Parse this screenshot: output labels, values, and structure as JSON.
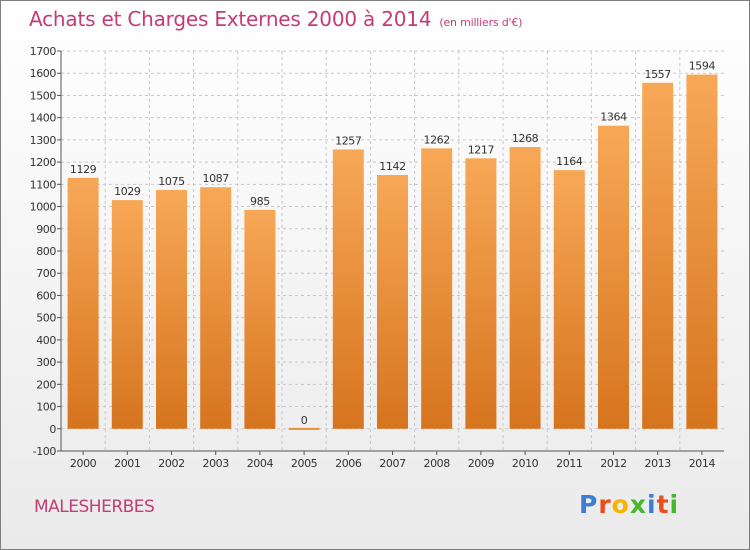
{
  "header": {
    "title": "Achats et Charges Externes 2000 à 2014",
    "unit": "(en milliers d'€)"
  },
  "footer": {
    "city": "MALESHERBES",
    "logo": {
      "letters": [
        "P",
        "r",
        "o",
        "x",
        "i",
        "t",
        "i"
      ],
      "colors": [
        "#3a7fd5",
        "#e94e1b",
        "#f5b400",
        "#46b62d",
        "#3a7fd5",
        "#e94e1b",
        "#46b62d"
      ]
    }
  },
  "colors": {
    "bar_light": "#f7a857",
    "bar_dark": "#d6741f",
    "grid": "#c8c8c8",
    "axis": "#555555",
    "title": "#c43c73"
  },
  "chart_data": {
    "type": "bar",
    "categories": [
      "2000",
      "2001",
      "2002",
      "2003",
      "2004",
      "2005",
      "2006",
      "2007",
      "2008",
      "2009",
      "2010",
      "2011",
      "2012",
      "2013",
      "2014"
    ],
    "values": [
      1129,
      1029,
      1075,
      1087,
      985,
      0,
      1257,
      1142,
      1262,
      1217,
      1268,
      1164,
      1364,
      1557,
      1594
    ],
    "data_labels": [
      "1129",
      "1029",
      "1075",
      "1087",
      "985",
      "0",
      "1257",
      "1142",
      "1262",
      "1217",
      "1268",
      "1164",
      "1364",
      "1557",
      "1594"
    ],
    "title": "Achats et Charges Externes 2000 à 2014",
    "xlabel": "",
    "ylabel": "",
    "ylim": [
      -100,
      1700
    ],
    "yticks": [
      -100,
      0,
      100,
      200,
      300,
      400,
      500,
      600,
      700,
      800,
      900,
      1000,
      1100,
      1200,
      1300,
      1400,
      1500,
      1600,
      1700
    ],
    "grid": true,
    "legend": "none"
  }
}
